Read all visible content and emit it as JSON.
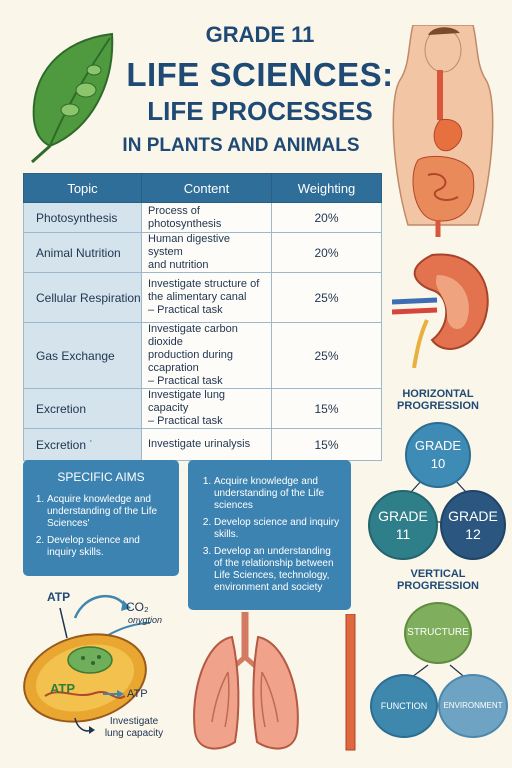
{
  "header": {
    "line1": "GRADE 11",
    "line2": "LIFE SCIENCES:",
    "line3": "LIFE PROCESSES",
    "line4": "IN PLANTS AND ANIMALS"
  },
  "table": {
    "headers": [
      "Topic",
      "Content",
      "Weighting"
    ],
    "rows": [
      {
        "topic": "Photosynthesis",
        "content": [
          "Process of photosynthesis"
        ],
        "weight": "20%"
      },
      {
        "topic": "Animal Nutrition",
        "content": [
          "Human digestive system",
          "and nutrition"
        ],
        "weight": "20%"
      },
      {
        "topic": "Cellular Respiration",
        "content": [
          "Investigate structure of",
          "the alimentary canal",
          "– Practical task"
        ],
        "weight": "25%"
      },
      {
        "topic": "Gas Exchange",
        "content": [
          "Investigate carbon dioxide",
          "production during ccapration",
          "– Practical task"
        ],
        "weight": "25%"
      },
      {
        "topic": "Excretion",
        "content": [
          "Investigate lung capacity",
          "– Practical task"
        ],
        "weight": "15%"
      },
      {
        "topic": "Excretion ˙",
        "content": [
          "Investigate urinalysis"
        ],
        "weight": "15%"
      }
    ]
  },
  "aims_left": {
    "heading": "SPECIFIC AIMS",
    "items": [
      "Acquire knowledge and understanding of the Life Sciences'",
      "Develop science and inquiry skills."
    ]
  },
  "aims_right": {
    "items": [
      "Acquire knowledge and understanding of the Life sciences",
      "Develop science and inquiry skills.",
      "Develop an understanding of the relationship between Life Sciences, technology, environment and society"
    ]
  },
  "horizontal": {
    "title1": "HORIZONTAL",
    "title2": "PROGRESSION",
    "top": [
      "GRADE",
      "10"
    ],
    "left": [
      "GRADE",
      "11"
    ],
    "right": [
      "GRADE",
      "12"
    ]
  },
  "vertical": {
    "title1": "VERTICAL",
    "title2": "PROGRESSION",
    "top": "STRUCTURE",
    "left": "FUNCTION",
    "right": "ENVIRONMENT"
  },
  "cell_labels": {
    "atp_top": "ATP",
    "co2": "CO₂",
    "oxygen": "onygtion",
    "atp_inner": "ATP",
    "atp_right": "ATP",
    "caption1": "Investigate",
    "caption2": "lung capacity"
  },
  "icons": [
    "leaf-icon",
    "digestive-system-icon",
    "kidney-icon",
    "cell-mitochondrion-icon",
    "lungs-icon",
    "trachea-tube-icon"
  ],
  "colors": {
    "title": "#1e4a75",
    "table_header": "#2f6e98",
    "aims_box": "#3d83b1",
    "grade10": "#3e8bb5",
    "grade11": "#2e7f8a",
    "grade12": "#2b5680",
    "structure": "#7fae5c",
    "function": "#3e88ad",
    "environment": "#6fa3c4"
  }
}
